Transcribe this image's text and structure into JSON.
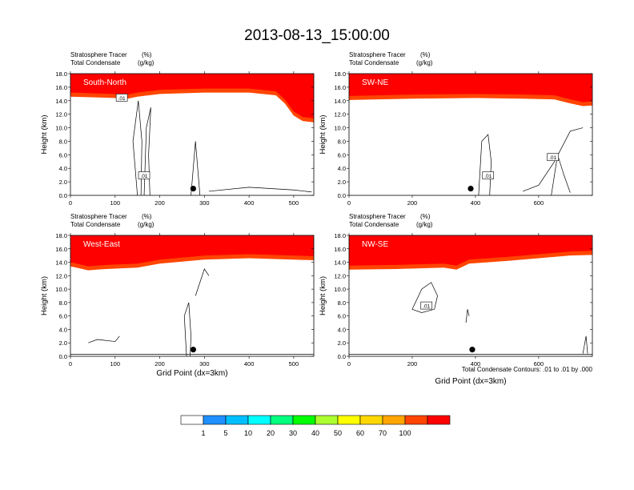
{
  "figure": {
    "title": "2013-08-13_15:00:00",
    "contour_note": "Total Condensate Contours: .01 to .01 by .000"
  },
  "chart_data": {
    "type": "heatmap",
    "shared": {
      "ylabel": "Height (km)",
      "xlabel": "Grid Point (dx=3km)",
      "ylim": [
        0,
        18
      ],
      "yticks": [
        0,
        2,
        4,
        6,
        8,
        10,
        12,
        14,
        16,
        18
      ],
      "ytick_labels": [
        "0.0",
        "2.0",
        "4.0",
        "6.0",
        "8.0",
        "10.0",
        "12.0",
        "14.0",
        "16.0",
        "18.0"
      ],
      "subtitle_line1_left": "Stratosphere Tracer",
      "subtitle_line1_right": "(%)",
      "subtitle_line2_left": "Total Condensate",
      "subtitle_line2_right": "(g/kg)",
      "contour_label": ".01"
    },
    "colorbar": {
      "levels": [
        1,
        5,
        10,
        20,
        30,
        40,
        50,
        60,
        70,
        100
      ],
      "level_labels": [
        "1",
        "5",
        "10",
        "20",
        "30",
        "40",
        "50",
        "60",
        "70",
        "100"
      ],
      "colors": [
        "#ffffff",
        "#1e90ff",
        "#00bfff",
        "#00ffff",
        "#00ff7f",
        "#00ff00",
        "#adff2f",
        "#ffff00",
        "#ffd700",
        "#ffa500",
        "#ff4500",
        "#ff0000"
      ]
    },
    "panels": [
      {
        "label": "South-North",
        "xlim": [
          0,
          545
        ],
        "xticks": [
          0,
          100,
          200,
          300,
          400,
          500
        ],
        "xtick_labels": [
          "0",
          "100",
          "200",
          "300",
          "400",
          "500"
        ],
        "show_xlabel": false,
        "tropopause_km": [
          [
            0,
            14.6
          ],
          [
            100,
            14.4
          ],
          [
            120,
            14.2
          ],
          [
            150,
            14.6
          ],
          [
            200,
            15.0
          ],
          [
            300,
            15.2
          ],
          [
            400,
            15.2
          ],
          [
            460,
            14.8
          ],
          [
            480,
            13.6
          ],
          [
            500,
            11.8
          ],
          [
            520,
            11.0
          ],
          [
            545,
            10.8
          ]
        ],
        "point_x": 275,
        "contour_labels_x": [
          [
            115,
            14.4
          ],
          [
            165,
            2.9
          ]
        ]
      },
      {
        "label": "SW-NE",
        "xlim": [
          0,
          770
        ],
        "xticks": [
          0,
          200,
          400,
          600
        ],
        "xtick_labels": [
          "0",
          "200",
          "400",
          "600"
        ],
        "show_xlabel": false,
        "tropopause_km": [
          [
            0,
            14.1
          ],
          [
            200,
            14.3
          ],
          [
            400,
            14.4
          ],
          [
            550,
            14.3
          ],
          [
            650,
            14.2
          ],
          [
            700,
            13.6
          ],
          [
            740,
            13.2
          ],
          [
            770,
            13.3
          ]
        ],
        "point_x": 385,
        "contour_labels_x": [
          [
            440,
            2.9
          ],
          [
            645,
            5.6
          ]
        ]
      },
      {
        "label": "West-East",
        "xlim": [
          0,
          545
        ],
        "xticks": [
          0,
          100,
          200,
          300,
          400,
          500
        ],
        "xtick_labels": [
          "0",
          "100",
          "200",
          "300",
          "400",
          "500"
        ],
        "show_xlabel": true,
        "tropopause_km": [
          [
            0,
            13.4
          ],
          [
            40,
            12.8
          ],
          [
            80,
            13.0
          ],
          [
            150,
            13.2
          ],
          [
            200,
            13.8
          ],
          [
            300,
            14.4
          ],
          [
            400,
            14.6
          ],
          [
            500,
            14.4
          ],
          [
            545,
            14.3
          ]
        ],
        "point_x": 275,
        "contour_labels_x": []
      },
      {
        "label": "NW-SE",
        "xlim": [
          0,
          770
        ],
        "xticks": [
          0,
          200,
          400,
          600
        ],
        "xtick_labels": [
          "0",
          "200",
          "400",
          "600"
        ],
        "show_xlabel": true,
        "tropopause_km": [
          [
            0,
            12.9
          ],
          [
            150,
            13.0
          ],
          [
            300,
            13.2
          ],
          [
            340,
            12.9
          ],
          [
            380,
            13.8
          ],
          [
            500,
            14.2
          ],
          [
            600,
            14.6
          ],
          [
            700,
            15.0
          ],
          [
            770,
            15.1
          ]
        ],
        "point_x": 390,
        "contour_labels_x": [
          [
            245,
            7.5
          ]
        ]
      }
    ]
  }
}
